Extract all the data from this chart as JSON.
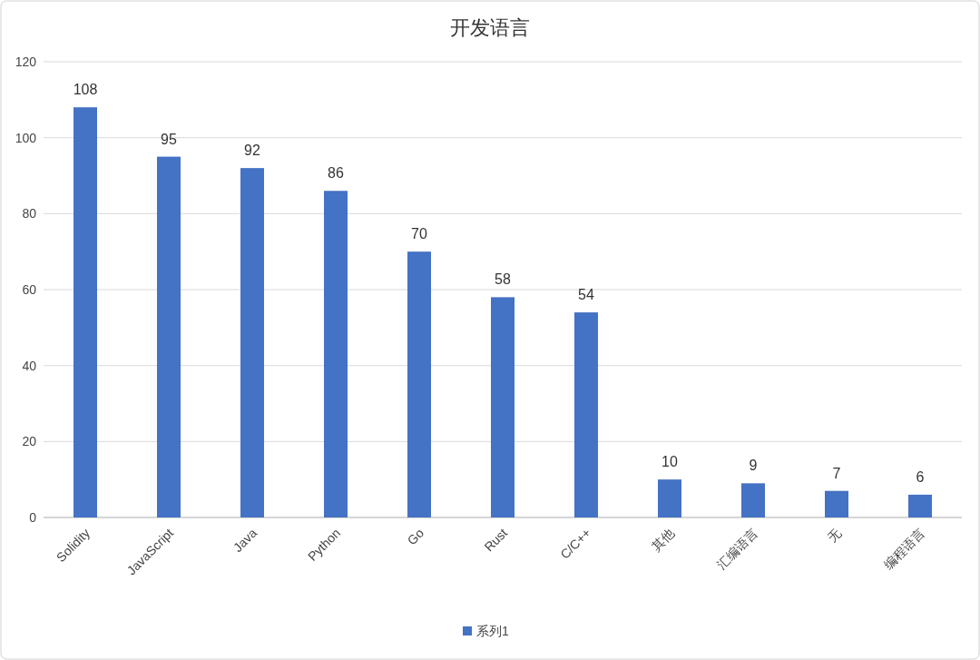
{
  "chart_data": {
    "type": "bar",
    "title": "开发语言",
    "categories": [
      "Solidity",
      "JavaScript",
      "Java",
      "Python",
      "Go",
      "Rust",
      "C/C++",
      "其他",
      "汇编语言",
      "无",
      "编程语言"
    ],
    "series": [
      {
        "name": "系列1",
        "color": "#4472c4",
        "values": [
          108,
          95,
          92,
          86,
          70,
          58,
          54,
          10,
          9,
          7,
          6
        ]
      }
    ],
    "ylim": [
      0,
      120
    ],
    "yticks": [
      0,
      20,
      40,
      60,
      80,
      100,
      120
    ],
    "grid": "y",
    "legend": "bottom",
    "data_labels": true
  }
}
